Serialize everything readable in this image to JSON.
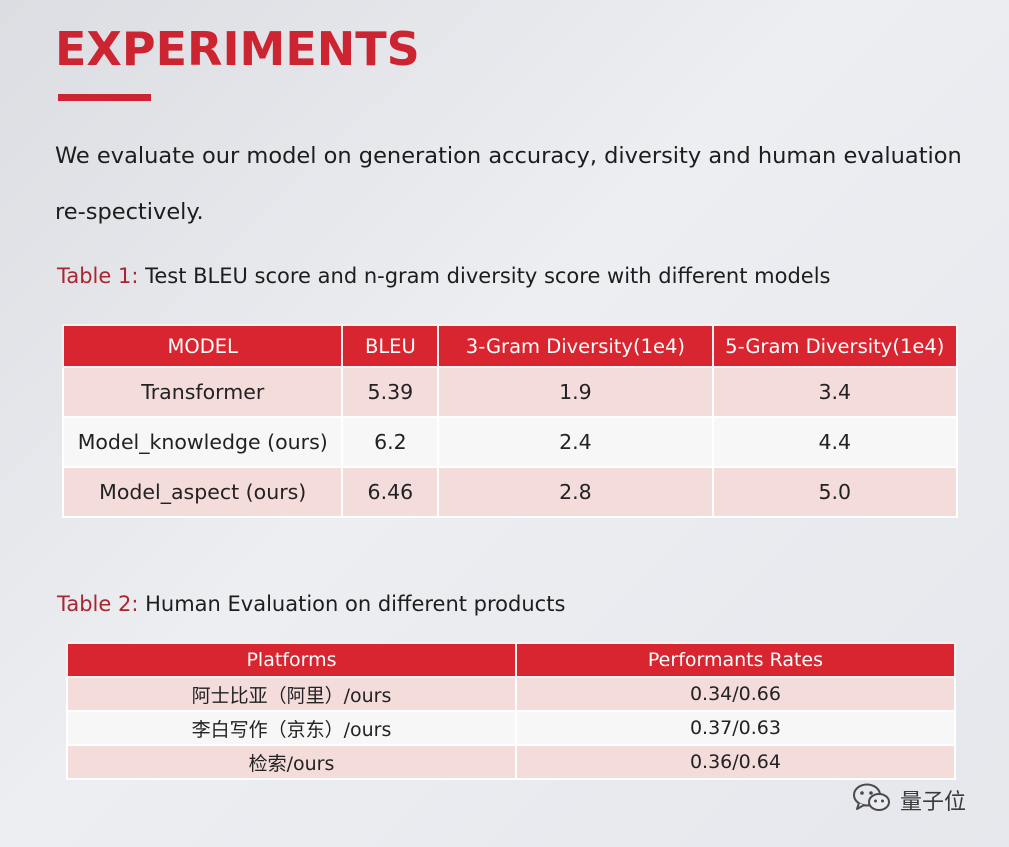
{
  "title": "EXPERIMENTS",
  "colors": {
    "accent": "#cc2430",
    "header_bg": "#d9252f",
    "row_tint": "#f4dcdb",
    "row_plain": "#f7f7f8"
  },
  "intro_text": "We evaluate our model on generation accuracy, diversity and human evaluation re-spectively.",
  "table1": {
    "caption_label": "Table 1:",
    "caption_text": " Test BLEU score and n-gram diversity score with different models",
    "headers": [
      "MODEL",
      "BLEU",
      "3-Gram Diversity(1e4)",
      "5-Gram Diversity(1e4)"
    ],
    "rows": [
      [
        "Transformer",
        "5.39",
        "1.9",
        "3.4"
      ],
      [
        "Model_knowledge (ours)",
        "6.2",
        "2.4",
        "4.4"
      ],
      [
        "Model_aspect (ours)",
        "6.46",
        "2.8",
        "5.0"
      ]
    ]
  },
  "table2": {
    "caption_label": "Table 2:",
    "caption_text": " Human Evaluation on different products",
    "headers": [
      "Platforms",
      "Performants Rates"
    ],
    "rows": [
      [
        "阿士比亚（阿里）/ours",
        "0.34/0.66"
      ],
      [
        "李白写作（京东）/ours",
        "0.37/0.63"
      ],
      [
        "检索/ours",
        "0.36/0.64"
      ]
    ]
  },
  "watermark": {
    "icon": "wechat-icon",
    "text": "量子位"
  }
}
